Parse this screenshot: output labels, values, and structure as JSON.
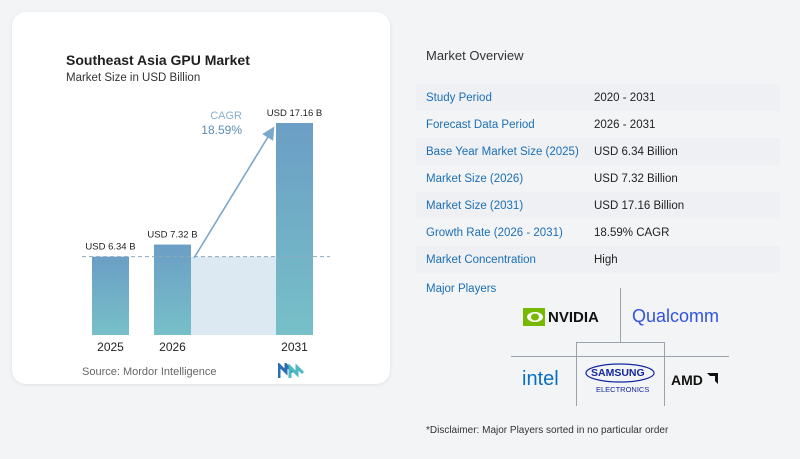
{
  "chart": {
    "title": "Southeast Asia GPU Market",
    "subtitle": "Market Size in USD Billion",
    "source": "Source: Mordor Intelligence",
    "cagr_label": "CAGR",
    "cagr_value": "18.59%"
  },
  "chart_data": {
    "type": "bar",
    "categories": [
      "2025",
      "2026",
      "2031"
    ],
    "values": [
      6.34,
      7.32,
      17.16
    ],
    "data_labels": [
      "USD 6.34 B",
      "USD 7.32 B",
      "USD 17.16 B"
    ],
    "title": "Southeast Asia GPU Market",
    "subtitle": "Market Size in USD Billion",
    "annotation": "CAGR 18.59%",
    "colors": {
      "bar_top": "#6b9ec5",
      "bar_bottom": "#77c0c8",
      "band": "#dde9f2",
      "arrow": "#7ba7c9"
    }
  },
  "overview": {
    "title": "Market Overview",
    "rows": [
      {
        "label": "Study Period",
        "value": "2020 - 2031"
      },
      {
        "label": "Forecast Data Period",
        "value": "2026 - 2031"
      },
      {
        "label": "Base Year Market Size (2025)",
        "value": "USD 6.34 Billion"
      },
      {
        "label": "Market Size (2026)",
        "value": "USD 7.32 Billion"
      },
      {
        "label": "Market Size (2031)",
        "value": "USD 17.16 Billion"
      },
      {
        "label": "Growth Rate (2026 - 2031)",
        "value": "18.59% CAGR"
      },
      {
        "label": "Market Concentration",
        "value": "High"
      }
    ],
    "players_title": "Major Players",
    "players": [
      {
        "name": "NVIDIA",
        "icon": "nvidia-eye-logo"
      },
      {
        "name": "Qualcomm"
      },
      {
        "name": "intel"
      },
      {
        "name": "SAMSUNG",
        "sub": "ELECTRONICS"
      },
      {
        "name": "AMD"
      }
    ],
    "disclaimer": "*Disclaimer: Major Players sorted in no particular order"
  }
}
